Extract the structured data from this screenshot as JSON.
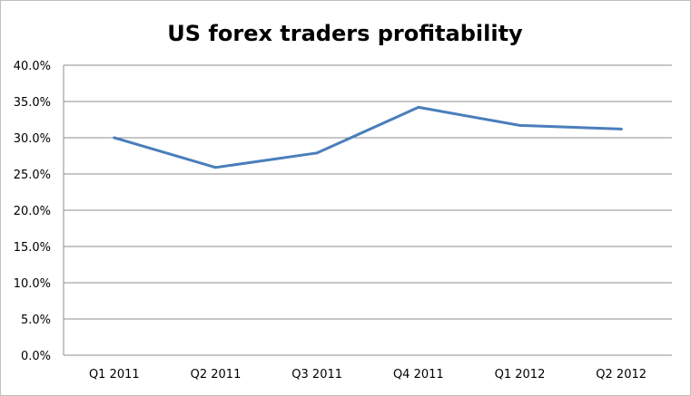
{
  "chart_data": {
    "type": "line",
    "title": "US forex traders profitability",
    "xlabel": "",
    "ylabel": "",
    "categories": [
      "Q1 2011",
      "Q2 2011",
      "Q3 2011",
      "Q4 2011",
      "Q1 2012",
      "Q2 2012"
    ],
    "series": [
      {
        "values": [
          30.0,
          25.9,
          27.9,
          34.2,
          31.7,
          31.2
        ]
      }
    ],
    "ylim": [
      0,
      40
    ],
    "ytick_values": [
      0,
      5,
      10,
      15,
      20,
      25,
      30,
      35,
      40
    ],
    "ytick_labels": [
      "0.0%",
      "5.0%",
      "10.0%",
      "15.0%",
      "20.0%",
      "25.0%",
      "30.0%",
      "35.0%",
      "40.0%"
    ],
    "grid": true,
    "legend": "none",
    "colors": {
      "line": "#4a7ebb",
      "grid": "#8c8c8c",
      "border": "#bfbfbf"
    }
  }
}
